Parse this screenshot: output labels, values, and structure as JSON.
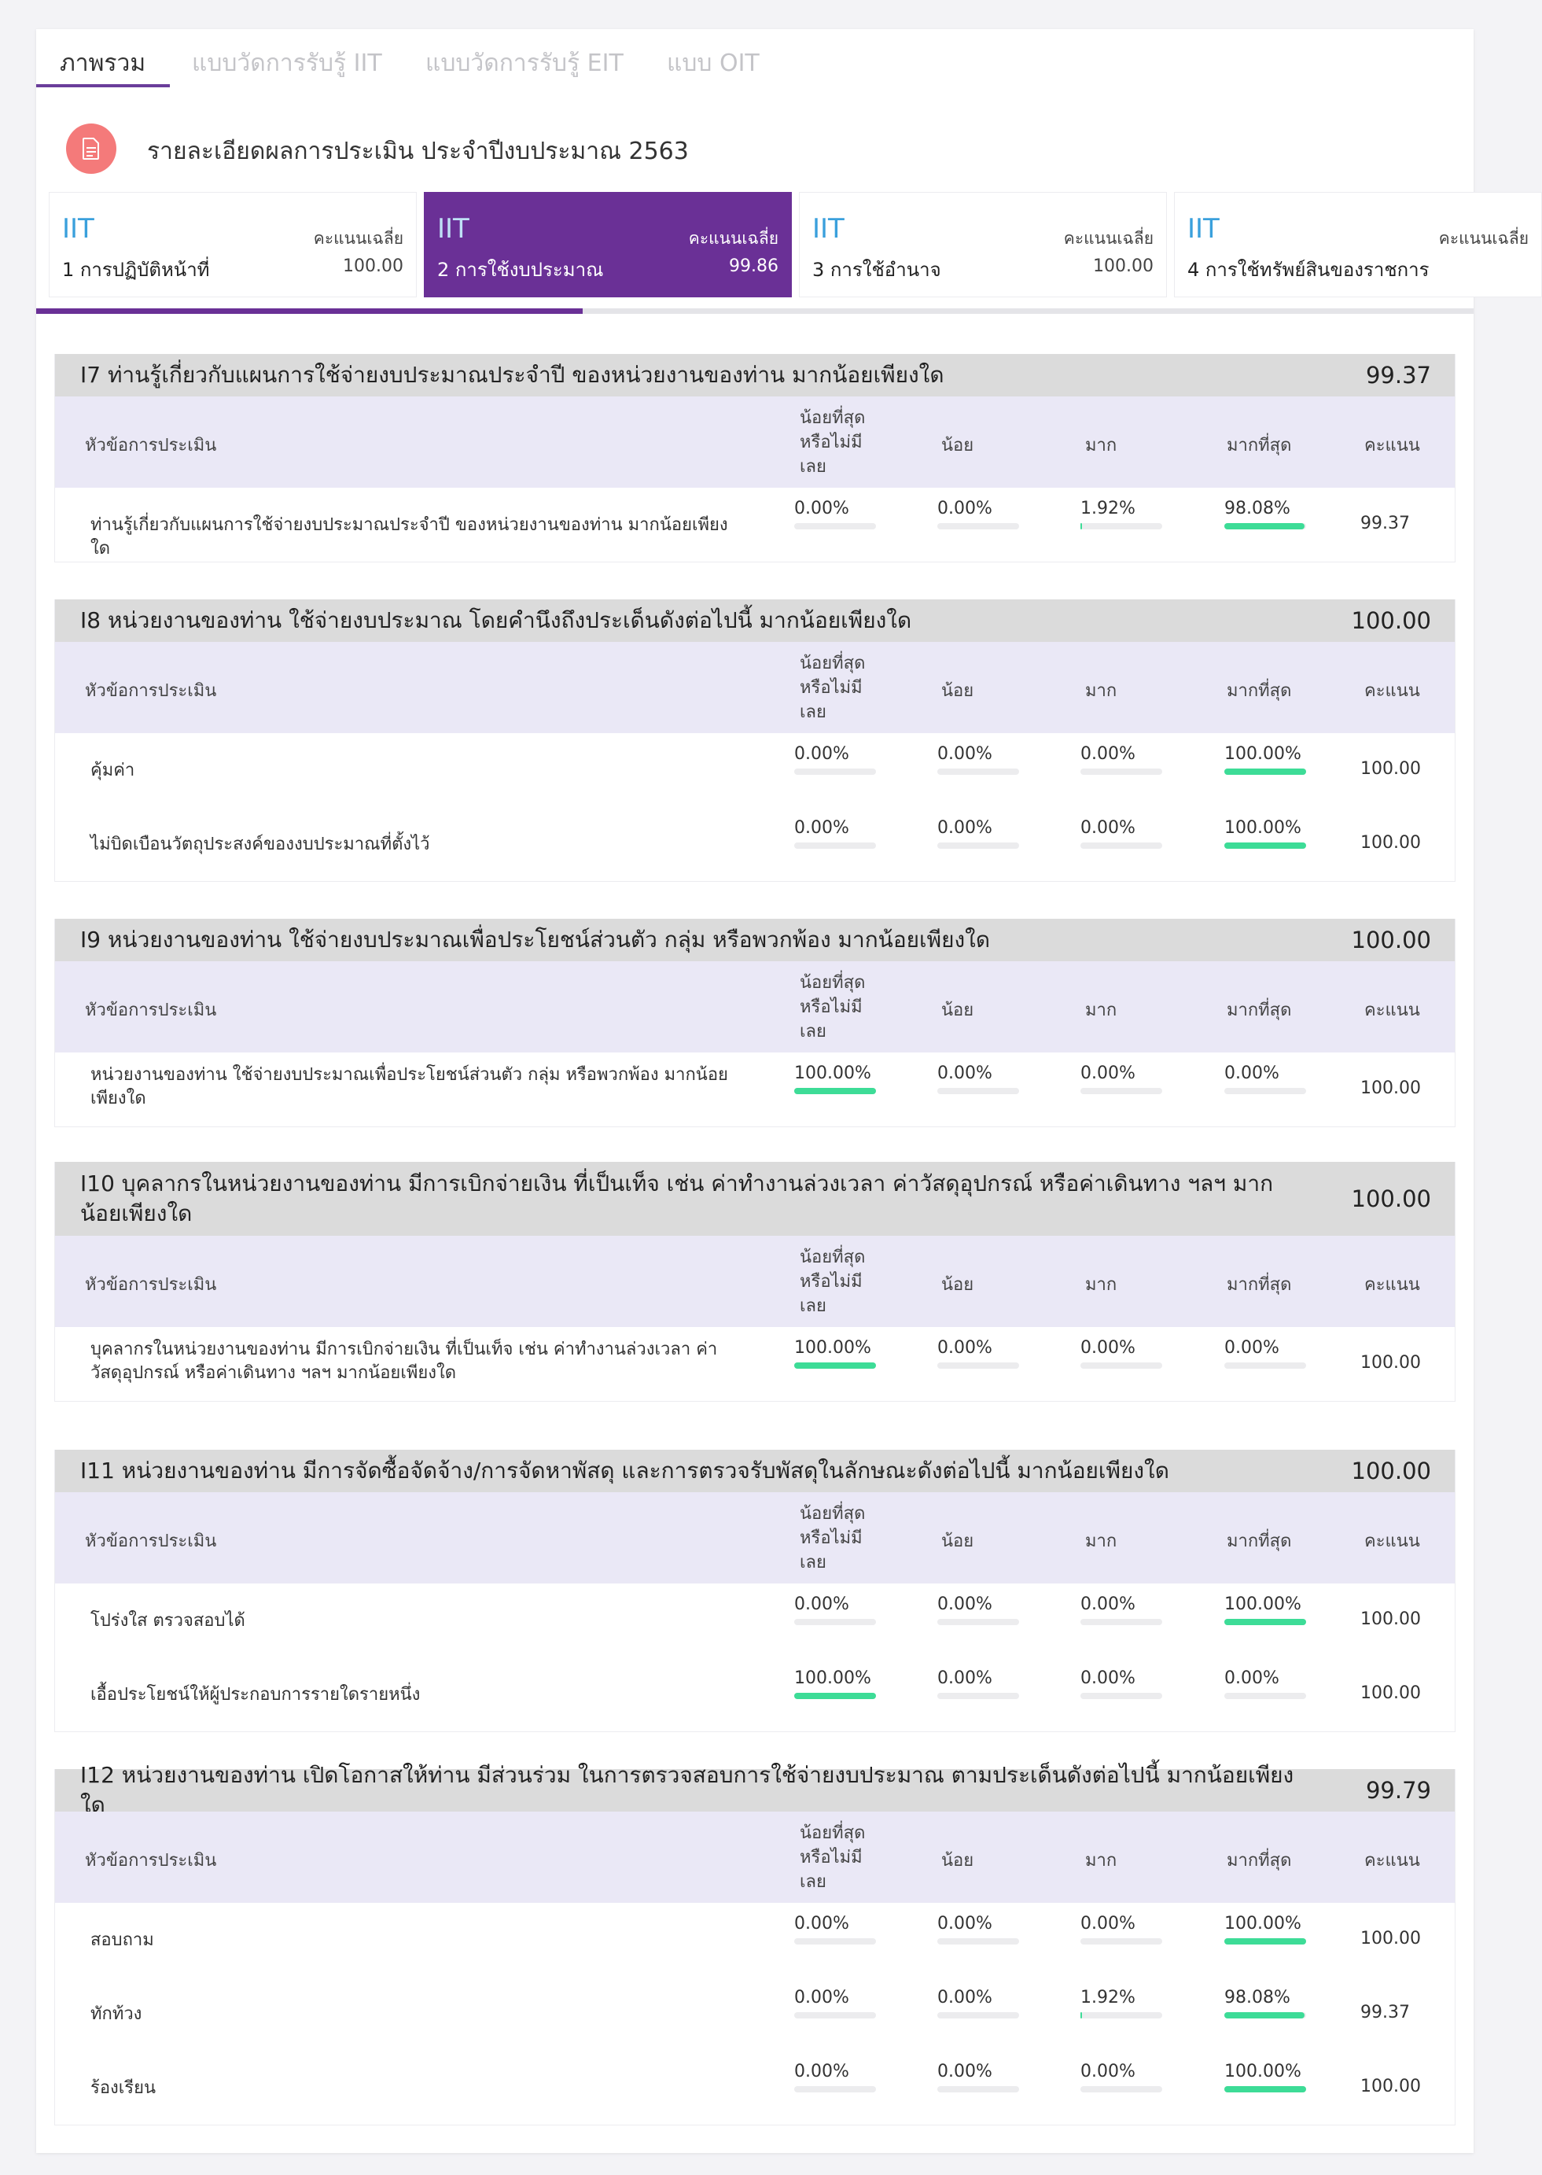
{
  "tabs": [
    {
      "label": "ภาพรวม",
      "active": true
    },
    {
      "label": "แบบวัดการรับรู้ IIT",
      "active": false
    },
    {
      "label": "แบบวัดการรับรู้ EIT",
      "active": false
    },
    {
      "label": "แบบ OIT",
      "active": false
    }
  ],
  "header": {
    "title": "รายละเอียดผลการประเมิน ประจำปีงบประมาณ 2563",
    "icon": "document-icon"
  },
  "indicators": [
    {
      "code": "IIT",
      "name": "1 การปฏิบัติหน้าที่",
      "avg_label": "คะแนนเฉลี่ย",
      "avg": "100.00",
      "active": false
    },
    {
      "code": "IIT",
      "name": "2 การใช้งบประมาณ",
      "avg_label": "คะแนนเฉลี่ย",
      "avg": "99.86",
      "active": true
    },
    {
      "code": "IIT",
      "name": "3 การใช้อำนาจ",
      "avg_label": "คะแนนเฉลี่ย",
      "avg": "100.00",
      "active": false
    },
    {
      "code": "IIT",
      "name": "4 การใช้ทรัพย์สินของราชการ",
      "avg_label": "คะแนนเฉลี่ย",
      "avg": "",
      "active": false
    }
  ],
  "scroll_progress": 0.38,
  "table_headers": {
    "topic": "หัวข้อการประเมิน",
    "c1": "น้อยที่สุดหรือไม่มีเลย",
    "c2": "น้อย",
    "c3": "มาก",
    "c4": "มากที่สุด",
    "score": "คะแนน"
  },
  "colors": {
    "accent": "#6a3096",
    "bar": "#3ddc97",
    "code": "#3aa0dc"
  },
  "questions": [
    {
      "title": "I7 ท่านรู้เกี่ยวกับแผนการใช้จ่ายงบประมาณประจำปี ของหน่วยงานของท่าน มากน้อยเพียงใด",
      "score": "99.37",
      "rows": [
        {
          "topic": "ท่านรู้เกี่ยวกับแผนการใช้จ่ายงบประมาณประจำปี ของหน่วยงานของท่าน มากน้อยเพียงใด",
          "v": [
            "0.00%",
            "0.00%",
            "1.92%",
            "98.08%"
          ],
          "f": [
            0,
            0,
            1.92,
            98.08
          ],
          "score": "99.37"
        }
      ]
    },
    {
      "title": "I8 หน่วยงานของท่าน ใช้จ่ายงบประมาณ โดยคำนึงถึงประเด็นดังต่อไปนี้ มากน้อยเพียงใด",
      "score": "100.00",
      "rows": [
        {
          "topic": "คุ้มค่า",
          "v": [
            "0.00%",
            "0.00%",
            "0.00%",
            "100.00%"
          ],
          "f": [
            0,
            0,
            0,
            100
          ],
          "score": "100.00"
        },
        {
          "topic": "ไม่บิดเบือนวัตถุประสงค์ของงบประมาณที่ตั้งไว้",
          "v": [
            "0.00%",
            "0.00%",
            "0.00%",
            "100.00%"
          ],
          "f": [
            0,
            0,
            0,
            100
          ],
          "score": "100.00"
        }
      ]
    },
    {
      "title": "I9 หน่วยงานของท่าน ใช้จ่ายงบประมาณเพื่อประโยชน์ส่วนตัว กลุ่ม หรือพวกพ้อง มากน้อยเพียงใด",
      "score": "100.00",
      "rows": [
        {
          "topic": "หน่วยงานของท่าน ใช้จ่ายงบประมาณเพื่อประโยชน์ส่วนตัว กลุ่ม หรือพวกพ้อง มากน้อยเพียงใด",
          "v": [
            "100.00%",
            "0.00%",
            "0.00%",
            "0.00%"
          ],
          "f": [
            100,
            0,
            0,
            0
          ],
          "score": "100.00"
        }
      ]
    },
    {
      "title": "I10 บุคลากรในหน่วยงานของท่าน มีการเบิกจ่ายเงิน ที่เป็นเท็จ เช่น ค่าทำงานล่วงเวลา ค่าวัสดุอุปกรณ์ หรือค่าเดินทาง ฯลฯ มากน้อยเพียงใด",
      "score": "100.00",
      "rows": [
        {
          "topic": "บุคลากรในหน่วยงานของท่าน มีการเบิกจ่ายเงิน ที่เป็นเท็จ เช่น ค่าทำงานล่วงเวลา ค่าวัสดุอุปกรณ์ หรือค่าเดินทาง ฯลฯ มากน้อยเพียงใด",
          "v": [
            "100.00%",
            "0.00%",
            "0.00%",
            "0.00%"
          ],
          "f": [
            100,
            0,
            0,
            0
          ],
          "score": "100.00"
        }
      ]
    },
    {
      "title": "I11 หน่วยงานของท่าน มีการจัดซื้อจัดจ้าง/การจัดหาพัสดุ และการตรวจรับพัสดุในลักษณะดังต่อไปนี้ มากน้อยเพียงใด",
      "score": "100.00",
      "rows": [
        {
          "topic": "โปร่งใส ตรวจสอบได้",
          "v": [
            "0.00%",
            "0.00%",
            "0.00%",
            "100.00%"
          ],
          "f": [
            0,
            0,
            0,
            100
          ],
          "score": "100.00"
        },
        {
          "topic": "เอื้อประโยชน์ให้ผู้ประกอบการรายใดรายหนึ่ง",
          "v": [
            "100.00%",
            "0.00%",
            "0.00%",
            "0.00%"
          ],
          "f": [
            100,
            0,
            0,
            0
          ],
          "score": "100.00"
        }
      ]
    },
    {
      "title": "I12 หน่วยงานของท่าน เปิดโอกาสให้ท่าน มีส่วนร่วม ในการตรวจสอบการใช้จ่ายงบประมาณ ตามประเด็นดังต่อไปนี้ มากน้อยเพียงใด",
      "score": "99.79",
      "rows": [
        {
          "topic": "สอบถาม",
          "v": [
            "0.00%",
            "0.00%",
            "0.00%",
            "100.00%"
          ],
          "f": [
            0,
            0,
            0,
            100
          ],
          "score": "100.00"
        },
        {
          "topic": "ทักท้วง",
          "v": [
            "0.00%",
            "0.00%",
            "1.92%",
            "98.08%"
          ],
          "f": [
            0,
            0,
            1.92,
            98.08
          ],
          "score": "99.37"
        },
        {
          "topic": "ร้องเรียน",
          "v": [
            "0.00%",
            "0.00%",
            "0.00%",
            "100.00%"
          ],
          "f": [
            0,
            0,
            0,
            100
          ],
          "score": "100.00"
        }
      ]
    }
  ]
}
